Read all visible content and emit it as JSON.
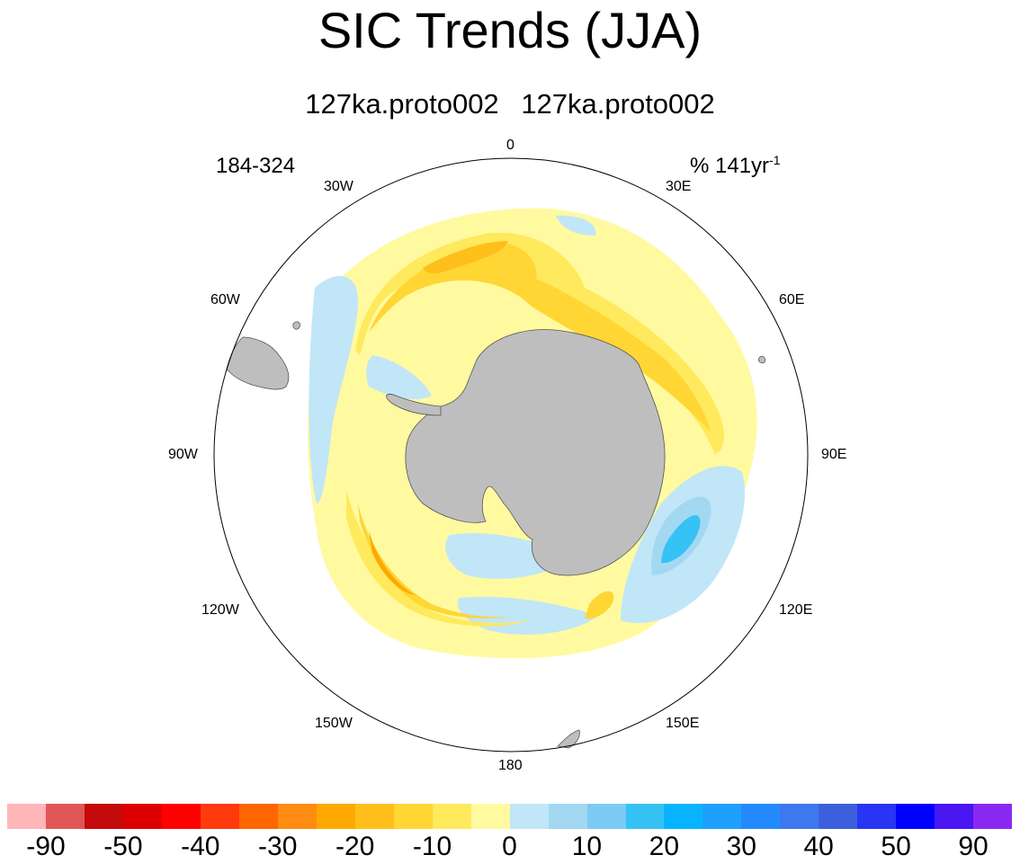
{
  "title": "SIC Trends (JJA)",
  "subtitle": {
    "left": "127ka.proto002",
    "right": "127ka.proto002"
  },
  "period": "184-324",
  "units": {
    "text": "% 141yr",
    "exponent": "-1"
  },
  "longitude_labels": {
    "lon_0": "0",
    "lon_30e": "30E",
    "lon_60e": "60E",
    "lon_90e": "90E",
    "lon_120e": "120E",
    "lon_150e": "150E",
    "lon_180": "180",
    "lon_150w": "150W",
    "lon_120w": "120W",
    "lon_90w": "90W",
    "lon_60w": "60W",
    "lon_30w": "30W"
  },
  "colorbar": {
    "colors": [
      "#ffb6b9",
      "#e05758",
      "#c40a0a",
      "#dd0000",
      "#ff0000",
      "#ff3a0d",
      "#ff6600",
      "#ff8b12",
      "#ffa800",
      "#ffbf1a",
      "#ffd633",
      "#ffe95c",
      "#fffaa0",
      "#c1e6f7",
      "#a3d8f2",
      "#7ccbf5",
      "#36c2f4",
      "#08b4ff",
      "#1ea0ff",
      "#238afd",
      "#3e78ef",
      "#3c60dc",
      "#2935f2",
      "#0000ff",
      "#4a16f2",
      "#8a29f2"
    ],
    "labels": [
      "-90",
      "-50",
      "-40",
      "-30",
      "-20",
      "-10",
      "0",
      "10",
      "20",
      "30",
      "40",
      "50",
      "90"
    ]
  },
  "map_colors": {
    "land": "#bebebe",
    "neg_light": "#fffaa0",
    "neg_mid": "#ffe95c",
    "neg_strong": "#ffd633",
    "neg_deep": "#ffbf1a",
    "neg_core": "#ffa800",
    "pos_light": "#c1e6f7",
    "pos_mid": "#a3d8f2",
    "pos_strong": "#36c2f4",
    "pos_core": "#1ea0ff"
  }
}
